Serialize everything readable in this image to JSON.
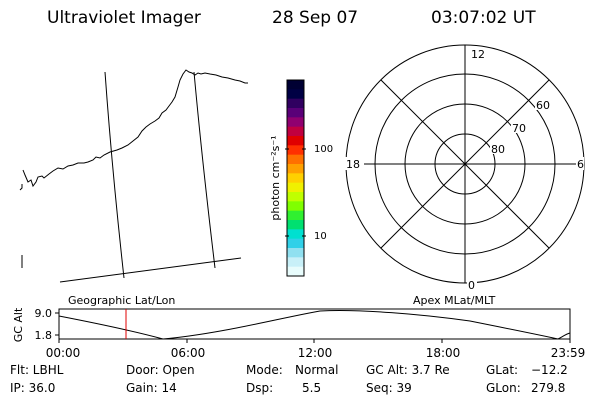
{
  "header": {
    "title": "Ultraviolet Imager",
    "date": "28 Sep 07",
    "time": "03:07:02 UT"
  },
  "colorbar": {
    "label": "photon cm⁻²s⁻¹",
    "ticks": [
      "100",
      "10"
    ],
    "colors": [
      "#000033",
      "#000044",
      "#300060",
      "#5a0078",
      "#900070",
      "#c00040",
      "#e00000",
      "#ff3000",
      "#ff7000",
      "#ffa000",
      "#ffd000",
      "#f0f000",
      "#c0ff00",
      "#80ff00",
      "#30f030",
      "#00e070",
      "#00e0d0",
      "#30d0e8",
      "#90e0f0",
      "#c8f0f8",
      "#e8fcfc"
    ]
  },
  "geo_panel": {
    "label": "Geographic Lat/Lon"
  },
  "polar": {
    "label": "Apex MLat/MLT",
    "mlt_labels": {
      "top": "12",
      "left": "18",
      "right": "6",
      "bottom": "0"
    },
    "lat_labels": [
      "60",
      "70",
      "80"
    ]
  },
  "timeline": {
    "ylabel": "GC Alt",
    "yticks": [
      "9.0",
      "1.8"
    ],
    "xticks": [
      "00:00",
      "06:00",
      "12:00",
      "18:00",
      "23:59"
    ]
  },
  "info": {
    "row1": {
      "flt": "Flt: LBHL",
      "door": "Door: Open",
      "mode_label": "Mode:",
      "mode_value": "Normal",
      "gc_alt": "GC Alt: 3.7 Re",
      "glat_label": "GLat:",
      "glat_value": "−12.2"
    },
    "row2": {
      "ip": "IP: 36.0",
      "gain": "Gain: 14",
      "dsp_label": "Dsp:",
      "dsp_value": "5.5",
      "seq": "Seq: 39",
      "glon_label": "GLon:",
      "glon_value": "279.8"
    }
  }
}
